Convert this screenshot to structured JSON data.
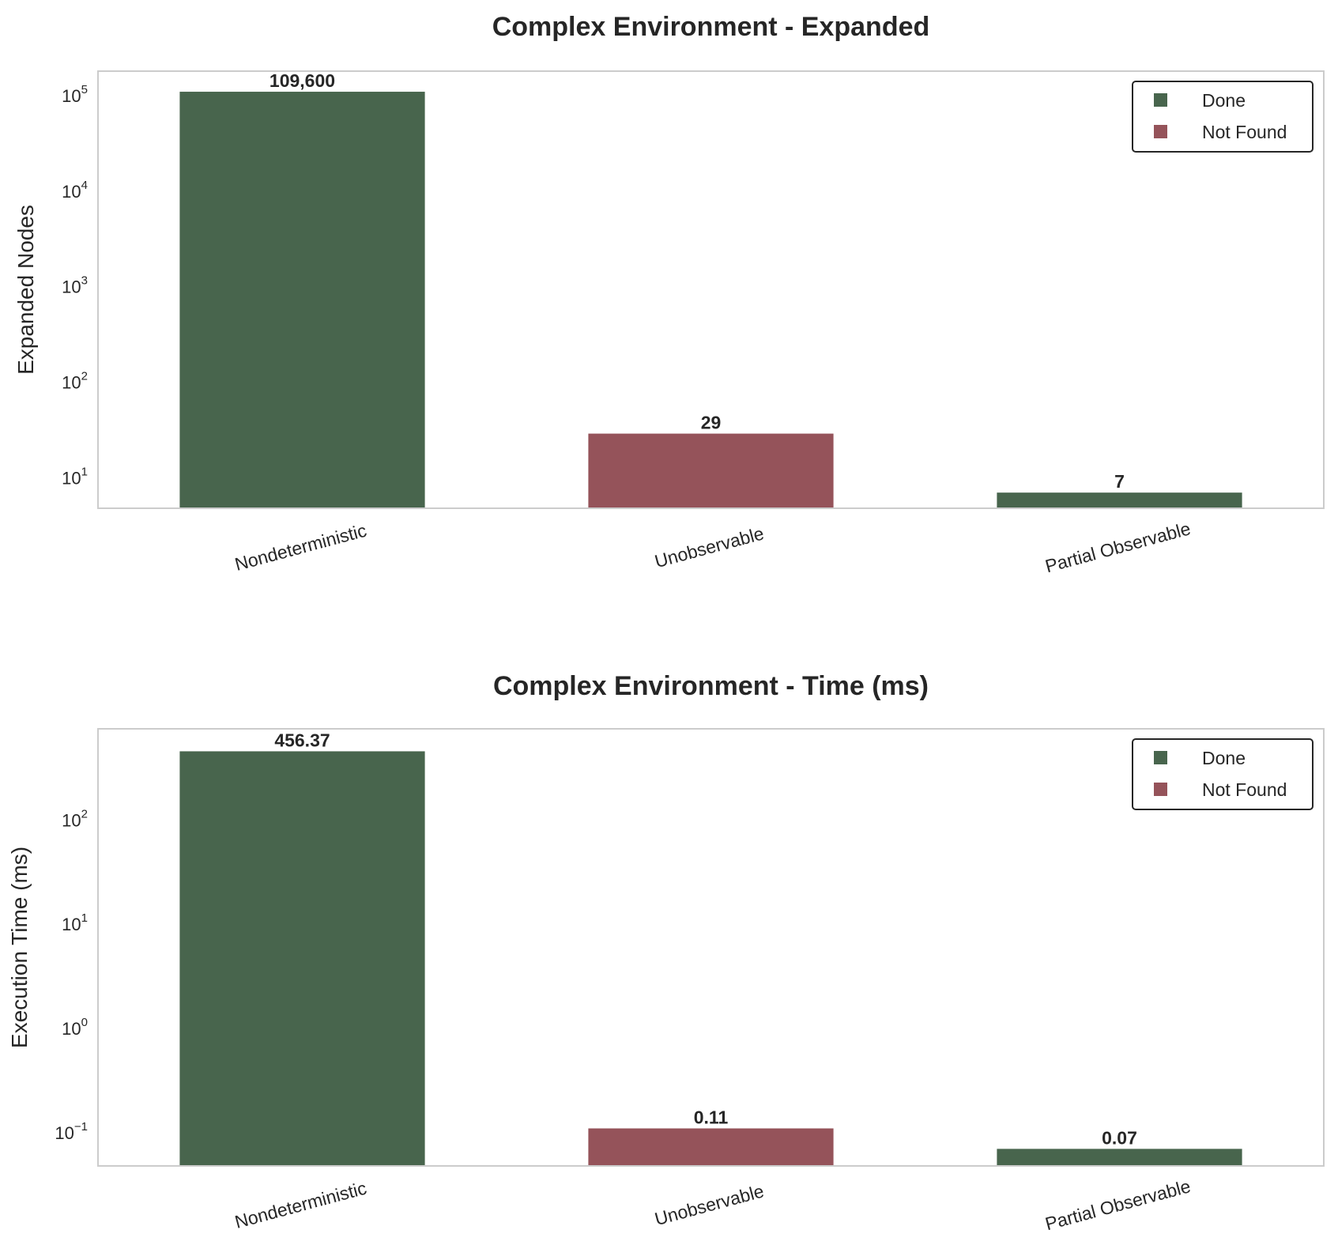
{
  "chart_data": [
    {
      "type": "bar",
      "title": "Complex Environment - Expanded",
      "xlabel": "",
      "ylabel": "Expanded Nodes",
      "yscale": "log",
      "ylim": [
        4.8,
        180000
      ],
      "ytick_values": [
        10,
        100,
        1000,
        10000,
        100000
      ],
      "ytick_labels": [
        {
          "base": "10",
          "exp": "1"
        },
        {
          "base": "10",
          "exp": "2"
        },
        {
          "base": "10",
          "exp": "3"
        },
        {
          "base": "10",
          "exp": "4"
        },
        {
          "base": "10",
          "exp": "5"
        }
      ],
      "categories": [
        "Nondeterministic",
        "Unobservable",
        "Partial Observable"
      ],
      "values": [
        109600,
        29,
        7
      ],
      "value_labels": [
        "109,600",
        "29",
        "7"
      ],
      "status": [
        "Done",
        "Not Found",
        "Done"
      ],
      "legend": {
        "position": "top-right",
        "entries": [
          "Done",
          "Not Found"
        ]
      },
      "grid": false
    },
    {
      "type": "bar",
      "title": "Complex Environment - Time (ms)",
      "xlabel": "",
      "ylabel": "Execution Time (ms)",
      "yscale": "log",
      "ylim": [
        0.048,
        750
      ],
      "ytick_values": [
        0.1,
        1,
        10,
        100
      ],
      "ytick_labels": [
        {
          "base": "10",
          "exp": "−1"
        },
        {
          "base": "10",
          "exp": "0"
        },
        {
          "base": "10",
          "exp": "1"
        },
        {
          "base": "10",
          "exp": "2"
        }
      ],
      "categories": [
        "Nondeterministic",
        "Unobservable",
        "Partial Observable"
      ],
      "values": [
        456.37,
        0.11,
        0.07
      ],
      "value_labels": [
        "456.37",
        "0.11",
        "0.07"
      ],
      "status": [
        "Done",
        "Not Found",
        "Done"
      ],
      "legend": {
        "position": "top-right",
        "entries": [
          "Done",
          "Not Found"
        ]
      },
      "grid": false
    }
  ],
  "colors": {
    "Done": "#48654d",
    "Not Found": "#95535a",
    "text": "#262626",
    "spine": "#cccccc"
  }
}
